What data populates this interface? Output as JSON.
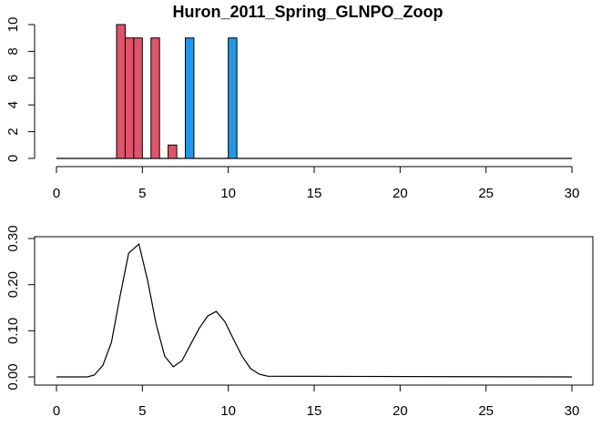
{
  "chart_data": [
    {
      "type": "bar",
      "title": "Huron_2011_Spring_GLNPO_Zoop",
      "xlabel": "",
      "ylabel": "",
      "xlim": [
        0,
        30
      ],
      "ylim": [
        0,
        10
      ],
      "x_ticks": [
        0,
        5,
        10,
        15,
        20,
        25,
        30
      ],
      "y_ticks": [
        0,
        2,
        4,
        6,
        8,
        10
      ],
      "grid": false,
      "legend": "none",
      "colors": {
        "red": "#DF536B",
        "blue": "#2297E6",
        "baseline": "#000000"
      },
      "bars": [
        {
          "x": 3.75,
          "value": 10,
          "color": "red"
        },
        {
          "x": 4.25,
          "value": 9,
          "color": "red"
        },
        {
          "x": 4.75,
          "value": 9,
          "color": "red"
        },
        {
          "x": 5.75,
          "value": 9,
          "color": "red"
        },
        {
          "x": 6.75,
          "value": 1,
          "color": "red"
        },
        {
          "x": 7.75,
          "value": 9,
          "color": "blue"
        },
        {
          "x": 10.25,
          "value": 9,
          "color": "blue"
        }
      ],
      "bar_width": 0.5,
      "baseline_range": [
        0,
        30
      ]
    },
    {
      "type": "line",
      "title": "",
      "xlabel": "",
      "ylabel": "",
      "xlim": [
        0,
        30
      ],
      "ylim": [
        0,
        0.3
      ],
      "x_ticks": [
        0,
        5,
        10,
        15,
        20,
        25,
        30
      ],
      "y_ticks": [
        "0.00",
        "0.10",
        "0.20",
        "0.30"
      ],
      "grid": false,
      "legend": "none",
      "series": [
        {
          "color": "#000000",
          "x": [
            0,
            1.8,
            2.2,
            2.7,
            3.2,
            3.7,
            4.2,
            4.8,
            5.3,
            5.8,
            6.3,
            6.8,
            7.3,
            7.8,
            8.3,
            8.8,
            9.3,
            9.8,
            10.3,
            10.8,
            11.3,
            11.8,
            12.3,
            30
          ],
          "y": [
            0.0,
            0.0,
            0.004,
            0.025,
            0.075,
            0.175,
            0.268,
            0.288,
            0.21,
            0.115,
            0.045,
            0.022,
            0.035,
            0.07,
            0.105,
            0.132,
            0.142,
            0.12,
            0.082,
            0.045,
            0.018,
            0.006,
            0.0015,
            0.0
          ]
        }
      ]
    }
  ]
}
